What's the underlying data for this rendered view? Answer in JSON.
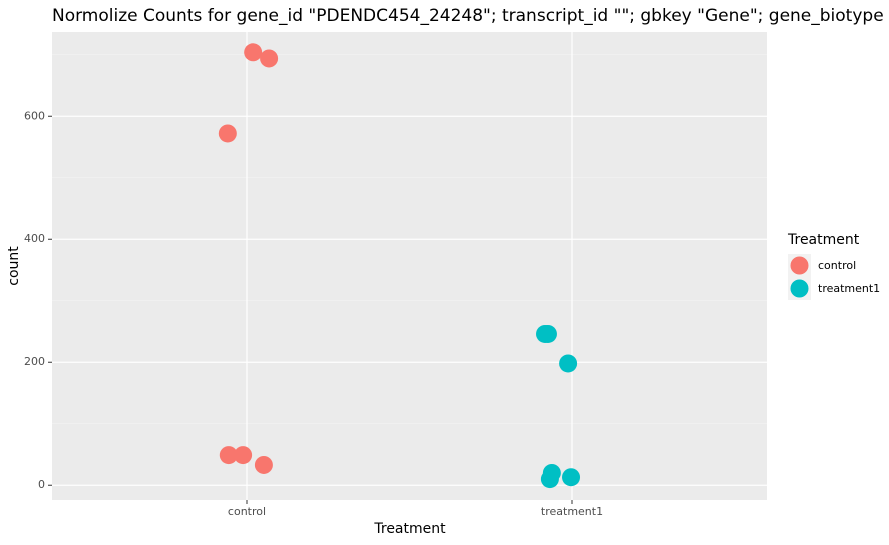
{
  "chart_data": {
    "type": "scatter",
    "title": "Normolize Counts for gene_id \"PDENDC454_24248\"; transcript_id \"\"; gbkey \"Gene\"; gene_biotype \"protein_coding\"",
    "x_label": "Treatment",
    "y_label": "count",
    "legend_title": "Treatment",
    "legend_position": "right",
    "series": [
      {
        "name": "control",
        "color": "#F8766D",
        "x": [
          1.019,
          1.068,
          0.941,
          0.944,
          0.988,
          1.052
        ],
        "values": [
          704,
          694,
          572,
          49,
          49,
          33
        ]
      },
      {
        "name": "treatment1",
        "color": "#00BFC4",
        "x": [
          1.917,
          1.926,
          1.988,
          1.938,
          1.932,
          1.997
        ],
        "values": [
          246,
          246,
          198,
          20,
          10,
          13
        ]
      }
    ],
    "xlim": [
      0.4,
      2.6
    ],
    "xticks": [
      {
        "value": 1,
        "label": "control"
      },
      {
        "value": 2,
        "label": "treatment1"
      }
    ],
    "ylim": [
      -24,
      737
    ],
    "yticks": [
      0,
      200,
      400,
      600
    ],
    "yminorticks": [
      100,
      300,
      500,
      700
    ],
    "grid": true
  }
}
